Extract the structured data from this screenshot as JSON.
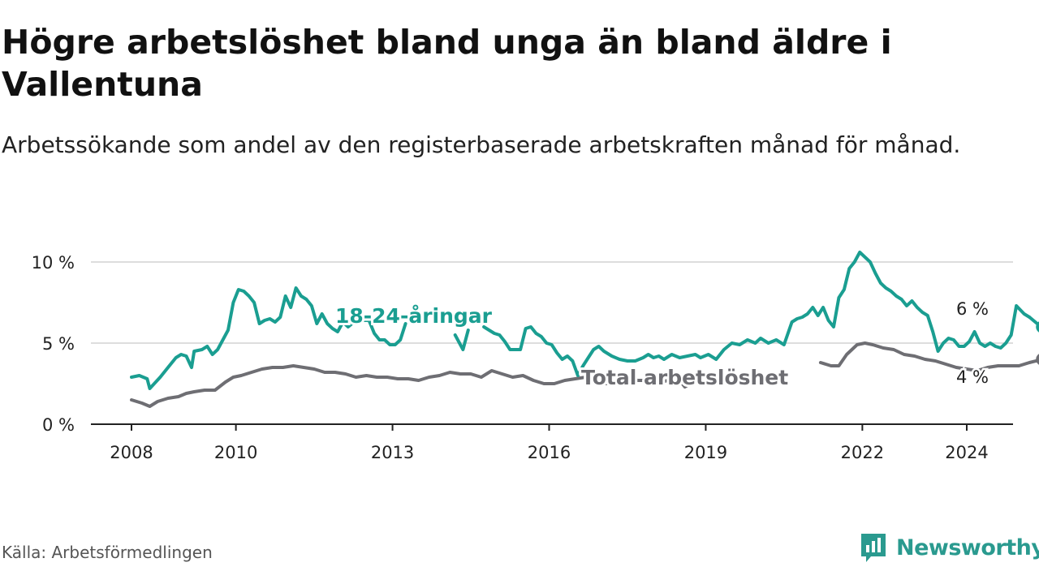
{
  "title": "Högre arbetslöshet bland unga än bland äldre i Vallentuna",
  "subtitle": "Arbetssökande som andel av den registerbaserade arbetskraften månad för månad.",
  "source": "Källa: Arbetsförmedlingen",
  "brand": "Newsworthy",
  "colors": {
    "young": "#1a9e91",
    "total": "#6e6e73",
    "grid": "#dddddd",
    "axis": "#222222",
    "brand": "#2a9a8f"
  },
  "chart_data": {
    "type": "line",
    "title": "Högre arbetslöshet bland unga än bland äldre i Vallentuna",
    "xlabel": "",
    "ylabel": "",
    "ylim": [
      0,
      10
    ],
    "xlim": [
      2008,
      2025.8
    ],
    "y_ticks": [
      {
        "value": 0,
        "label": "0 %"
      },
      {
        "value": 5,
        "label": "5 %"
      },
      {
        "value": 10,
        "label": "10 %"
      }
    ],
    "x_ticks": [
      {
        "value": 2008,
        "label": "2008"
      },
      {
        "value": 2010,
        "label": "2010"
      },
      {
        "value": 2013,
        "label": "2013"
      },
      {
        "value": 2016,
        "label": "2016"
      },
      {
        "value": 2019,
        "label": "2019"
      },
      {
        "value": 2022,
        "label": "2022"
      },
      {
        "value": 2024,
        "label": "2024"
      }
    ],
    "series": [
      {
        "name": "18-24-åringar",
        "end_label": "6 %",
        "end_value": 6.0,
        "points": [
          [
            2008.0,
            2.9
          ],
          [
            2008.15,
            3.0
          ],
          [
            2008.3,
            2.8
          ],
          [
            2008.35,
            2.2
          ],
          [
            2008.55,
            2.9
          ],
          [
            2008.7,
            3.5
          ],
          [
            2008.85,
            4.1
          ],
          [
            2008.95,
            4.3
          ],
          [
            2009.05,
            4.2
          ],
          [
            2009.15,
            3.5
          ],
          [
            2009.2,
            4.5
          ],
          [
            2009.35,
            4.6
          ],
          [
            2009.45,
            4.8
          ],
          [
            2009.55,
            4.3
          ],
          [
            2009.65,
            4.6
          ],
          [
            2009.85,
            5.8
          ],
          [
            2009.95,
            7.5
          ],
          [
            2010.05,
            8.3
          ],
          [
            2010.15,
            8.2
          ],
          [
            2010.25,
            7.9
          ],
          [
            2010.35,
            7.5
          ],
          [
            2010.45,
            6.2
          ],
          [
            2010.55,
            6.4
          ],
          [
            2010.65,
            6.5
          ],
          [
            2010.75,
            6.3
          ],
          [
            2010.85,
            6.6
          ],
          [
            2010.95,
            7.9
          ],
          [
            2011.05,
            7.2
          ],
          [
            2011.15,
            8.4
          ],
          [
            2011.25,
            7.9
          ],
          [
            2011.35,
            7.7
          ],
          [
            2011.45,
            7.3
          ],
          [
            2011.55,
            6.2
          ],
          [
            2011.65,
            6.8
          ],
          [
            2011.75,
            6.2
          ],
          [
            2011.85,
            5.9
          ],
          [
            2011.95,
            5.7
          ],
          [
            2012.05,
            6.3
          ],
          [
            2012.15,
            6.0
          ],
          [
            2012.3,
            6.4
          ],
          [
            2012.35,
            6.8
          ],
          [
            2012.45,
            6.4
          ],
          [
            2012.55,
            6.4
          ],
          [
            2012.65,
            5.6
          ],
          [
            2012.75,
            5.2
          ],
          [
            2012.85,
            5.2
          ],
          [
            2012.95,
            4.9
          ],
          [
            2013.05,
            4.9
          ],
          [
            2013.15,
            5.2
          ],
          [
            2013.25,
            6.2
          ]
        ],
        "gap_points": [
          [
            2014.2,
            5.5
          ],
          [
            2014.35,
            4.6
          ],
          [
            2014.45,
            5.8
          ]
        ],
        "points2": [
          [
            2014.75,
            6.0
          ],
          [
            2014.85,
            5.8
          ],
          [
            2014.95,
            5.6
          ],
          [
            2015.05,
            5.5
          ],
          [
            2015.15,
            5.1
          ],
          [
            2015.25,
            4.6
          ],
          [
            2015.35,
            4.6
          ],
          [
            2015.45,
            4.6
          ],
          [
            2015.55,
            5.9
          ],
          [
            2015.65,
            6.0
          ],
          [
            2015.75,
            5.6
          ],
          [
            2015.85,
            5.4
          ],
          [
            2015.95,
            5.0
          ],
          [
            2016.05,
            4.9
          ],
          [
            2016.15,
            4.4
          ],
          [
            2016.25,
            4.0
          ],
          [
            2016.35,
            4.2
          ],
          [
            2016.45,
            3.9
          ],
          [
            2016.55,
            3.0
          ],
          [
            2016.65,
            3.6
          ],
          [
            2016.75,
            4.1
          ],
          [
            2016.85,
            4.6
          ],
          [
            2016.95,
            4.8
          ],
          [
            2017.05,
            4.5
          ],
          [
            2017.2,
            4.2
          ],
          [
            2017.35,
            4.0
          ],
          [
            2017.5,
            3.9
          ],
          [
            2017.65,
            3.9
          ],
          [
            2017.8,
            4.1
          ],
          [
            2017.9,
            4.3
          ],
          [
            2018.0,
            4.1
          ],
          [
            2018.1,
            4.2
          ],
          [
            2018.2,
            4.0
          ],
          [
            2018.35,
            4.3
          ],
          [
            2018.5,
            4.1
          ],
          [
            2018.65,
            4.2
          ],
          [
            2018.8,
            4.3
          ],
          [
            2018.9,
            4.1
          ],
          [
            2019.05,
            4.3
          ],
          [
            2019.2,
            4.0
          ],
          [
            2019.35,
            4.6
          ],
          [
            2019.5,
            5.0
          ],
          [
            2019.65,
            4.9
          ],
          [
            2019.8,
            5.2
          ],
          [
            2019.95,
            5.0
          ],
          [
            2020.05,
            5.3
          ],
          [
            2020.2,
            5.0
          ],
          [
            2020.35,
            5.2
          ],
          [
            2020.5,
            4.9
          ],
          [
            2020.65,
            6.3
          ],
          [
            2020.75,
            6.5
          ],
          [
            2020.85,
            6.6
          ],
          [
            2020.95,
            6.8
          ],
          [
            2021.05,
            7.2
          ],
          [
            2021.15,
            6.7
          ],
          [
            2021.25,
            7.2
          ],
          [
            2021.35,
            6.4
          ],
          [
            2021.45,
            6.0
          ],
          [
            2021.55,
            7.8
          ],
          [
            2021.65,
            8.3
          ],
          [
            2021.75,
            9.6
          ],
          [
            2021.85,
            10.0
          ],
          [
            2021.95,
            10.6
          ],
          [
            2022.05,
            10.3
          ],
          [
            2022.15,
            10.0
          ],
          [
            2022.25,
            9.3
          ],
          [
            2022.35,
            8.7
          ],
          [
            2022.45,
            8.4
          ],
          [
            2022.55,
            8.2
          ],
          [
            2022.65,
            7.9
          ],
          [
            2022.75,
            7.7
          ],
          [
            2022.85,
            7.3
          ],
          [
            2022.95,
            7.6
          ],
          [
            2023.05,
            7.2
          ],
          [
            2023.15,
            6.9
          ],
          [
            2023.25,
            6.7
          ],
          [
            2023.35,
            5.7
          ],
          [
            2023.45,
            4.5
          ],
          [
            2023.55,
            5.0
          ],
          [
            2023.65,
            5.3
          ],
          [
            2023.75,
            5.2
          ],
          [
            2023.85,
            4.8
          ],
          [
            2023.95,
            4.8
          ],
          [
            2024.05,
            5.1
          ],
          [
            2024.15,
            5.7
          ],
          [
            2024.25,
            5.0
          ],
          [
            2024.35,
            4.8
          ],
          [
            2024.45,
            5.0
          ],
          [
            2024.55,
            4.8
          ],
          [
            2024.65,
            4.7
          ],
          [
            2024.75,
            5.0
          ],
          [
            2024.85,
            5.5
          ],
          [
            2024.95,
            7.3
          ],
          [
            2025.1,
            6.8
          ],
          [
            2025.2,
            6.6
          ]
        ],
        "points3": [
          [
            2025.2,
            6.6
          ],
          [
            2025.35,
            6.2
          ],
          [
            2025.45,
            6.0
          ]
        ]
      },
      {
        "name": "Total arbetslöshet",
        "end_label": "4 %",
        "end_value": 4.0,
        "points": [
          [
            2008.0,
            1.5
          ],
          [
            2008.2,
            1.3
          ],
          [
            2008.35,
            1.1
          ],
          [
            2008.5,
            1.4
          ],
          [
            2008.7,
            1.6
          ],
          [
            2008.9,
            1.7
          ],
          [
            2009.05,
            1.9
          ],
          [
            2009.2,
            2.0
          ],
          [
            2009.4,
            2.1
          ],
          [
            2009.6,
            2.1
          ],
          [
            2009.8,
            2.6
          ],
          [
            2009.95,
            2.9
          ],
          [
            2010.1,
            3.0
          ],
          [
            2010.3,
            3.2
          ],
          [
            2010.5,
            3.4
          ],
          [
            2010.7,
            3.5
          ],
          [
            2010.9,
            3.5
          ],
          [
            2011.1,
            3.6
          ],
          [
            2011.3,
            3.5
          ],
          [
            2011.5,
            3.4
          ],
          [
            2011.7,
            3.2
          ],
          [
            2011.9,
            3.2
          ],
          [
            2012.1,
            3.1
          ],
          [
            2012.3,
            2.9
          ],
          [
            2012.5,
            3.0
          ],
          [
            2012.7,
            2.9
          ],
          [
            2012.9,
            2.9
          ],
          [
            2013.1,
            2.8
          ],
          [
            2013.3,
            2.8
          ],
          [
            2013.5,
            2.7
          ],
          [
            2013.7,
            2.9
          ],
          [
            2013.9,
            3.0
          ],
          [
            2014.1,
            3.2
          ],
          [
            2014.3,
            3.1
          ],
          [
            2014.5,
            3.1
          ],
          [
            2014.7,
            2.9
          ],
          [
            2014.9,
            3.3
          ],
          [
            2015.1,
            3.1
          ],
          [
            2015.3,
            2.9
          ],
          [
            2015.5,
            3.0
          ],
          [
            2015.7,
            2.7
          ],
          [
            2015.9,
            2.5
          ],
          [
            2016.1,
            2.5
          ],
          [
            2016.3,
            2.7
          ],
          [
            2016.5,
            2.8
          ],
          [
            2016.7,
            2.9
          ],
          [
            2016.9,
            2.6
          ],
          [
            2017.1,
            2.5
          ],
          [
            2017.3,
            2.6
          ],
          [
            2017.5,
            2.8
          ],
          [
            2017.7,
            2.7
          ],
          [
            2017.9,
            2.7
          ],
          [
            2018.1,
            2.6
          ],
          [
            2018.3,
            2.7
          ],
          [
            2018.5,
            2.7
          ],
          [
            2018.6,
            2.3
          ],
          [
            2018.7,
            2.5
          ],
          [
            2018.9,
            2.7
          ]
        ],
        "points2": [
          [
            2021.2,
            3.8
          ],
          [
            2021.4,
            3.6
          ],
          [
            2021.55,
            3.6
          ],
          [
            2021.7,
            4.3
          ],
          [
            2021.9,
            4.9
          ],
          [
            2022.05,
            5.0
          ],
          [
            2022.2,
            4.9
          ],
          [
            2022.4,
            4.7
          ],
          [
            2022.6,
            4.6
          ],
          [
            2022.8,
            4.3
          ],
          [
            2023.0,
            4.2
          ],
          [
            2023.2,
            4.0
          ],
          [
            2023.4,
            3.9
          ],
          [
            2023.6,
            3.7
          ],
          [
            2023.8,
            3.5
          ],
          [
            2024.0,
            3.4
          ],
          [
            2024.2,
            3.3
          ],
          [
            2024.4,
            3.5
          ],
          [
            2024.6,
            3.6
          ],
          [
            2024.8,
            3.6
          ],
          [
            2025.0,
            3.6
          ],
          [
            2025.2,
            3.8
          ],
          [
            2025.45,
            4.0
          ]
        ]
      }
    ],
    "series_labels": [
      "18-24-åringar",
      "Total arbetslöshet"
    ]
  }
}
